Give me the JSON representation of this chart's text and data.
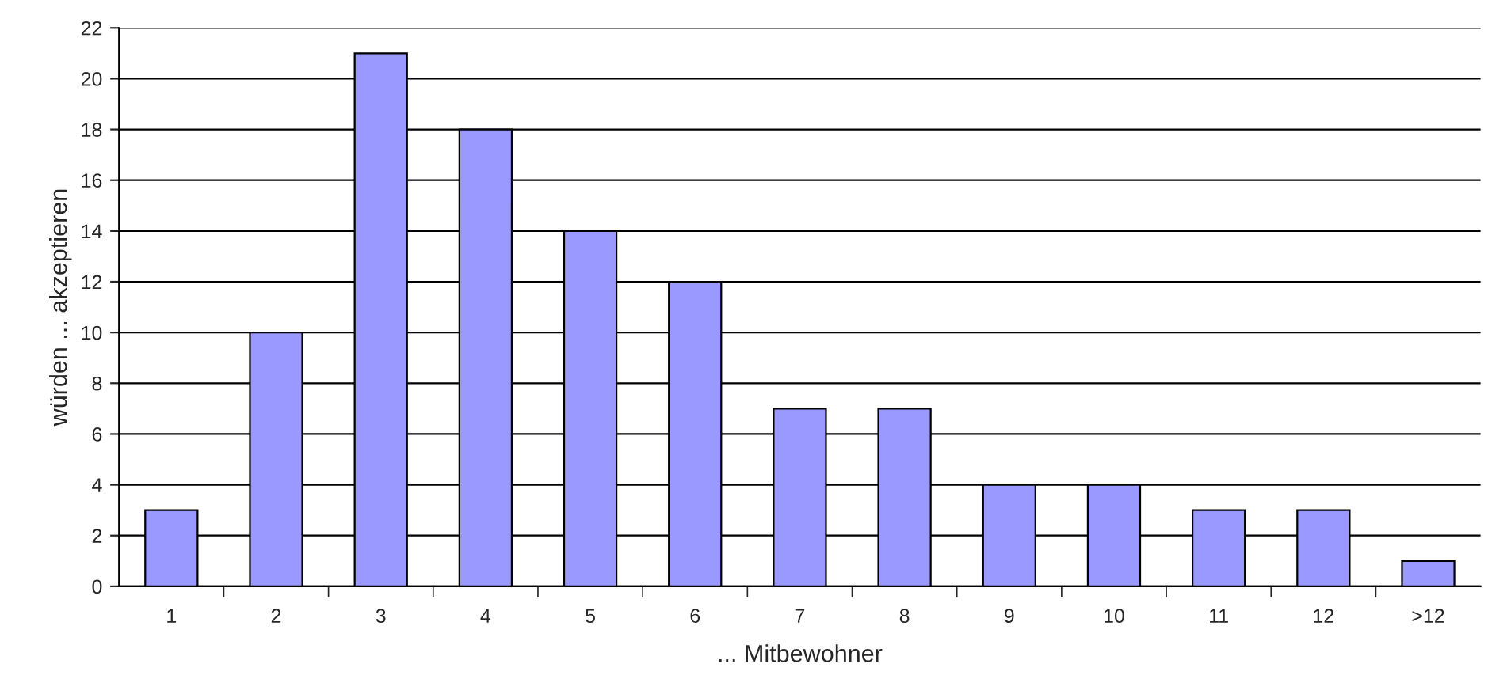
{
  "chart_data": {
    "type": "bar",
    "xlabel": "... Mitbewohner",
    "ylabel": "würden ... akzeptieren",
    "categories": [
      "1",
      "2",
      "3",
      "4",
      "5",
      "6",
      "7",
      "8",
      "9",
      "10",
      "11",
      "12",
      ">12"
    ],
    "values": [
      3,
      10,
      21,
      18,
      14,
      12,
      7,
      7,
      4,
      4,
      3,
      3,
      1
    ],
    "color": "#9999ff",
    "ylim": [
      0,
      22
    ],
    "yticks": [
      0,
      2,
      4,
      6,
      8,
      10,
      12,
      14,
      16,
      18,
      20,
      22
    ],
    "grid": "y",
    "legend": false
  }
}
